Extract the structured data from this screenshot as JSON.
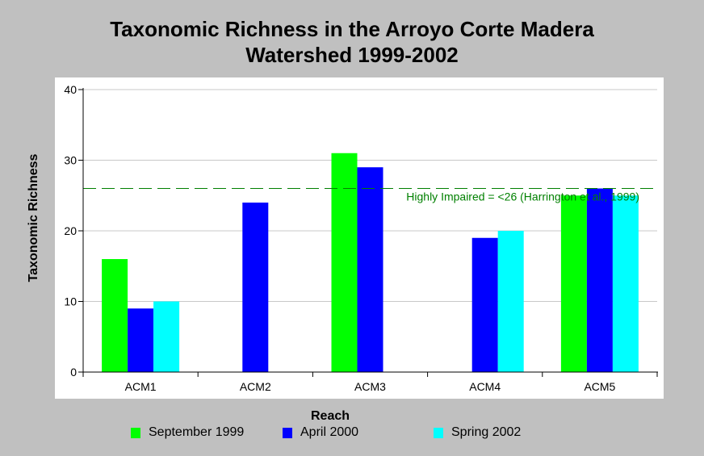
{
  "chart_data": {
    "type": "bar",
    "title_lines": [
      "Taxonomic Richness in the Arroyo Corte Madera",
      "Watershed 1999-2002"
    ],
    "xlabel": "Reach",
    "ylabel": "Taxonomic Richness",
    "categories": [
      "ACM1",
      "ACM2",
      "ACM3",
      "ACM4",
      "ACM5"
    ],
    "ylim": [
      0,
      40
    ],
    "yticks": [
      "0",
      "10",
      "20",
      "30",
      "40"
    ],
    "grid": true,
    "legend_position": "bottom",
    "series": [
      {
        "name": "September 1999",
        "color": "#00ff00",
        "values": [
          16,
          null,
          31,
          null,
          25
        ]
      },
      {
        "name": "April 2000",
        "color": "#0000ff",
        "values": [
          9,
          24,
          29,
          19,
          26
        ]
      },
      {
        "name": "Spring 2002",
        "color": "#00ffff",
        "values": [
          10,
          null,
          null,
          20,
          25
        ]
      }
    ],
    "reference_line": {
      "value": 26,
      "label": "Highly Impaired = <26 (Harrington et al., 1999)",
      "color": "#008000"
    }
  }
}
